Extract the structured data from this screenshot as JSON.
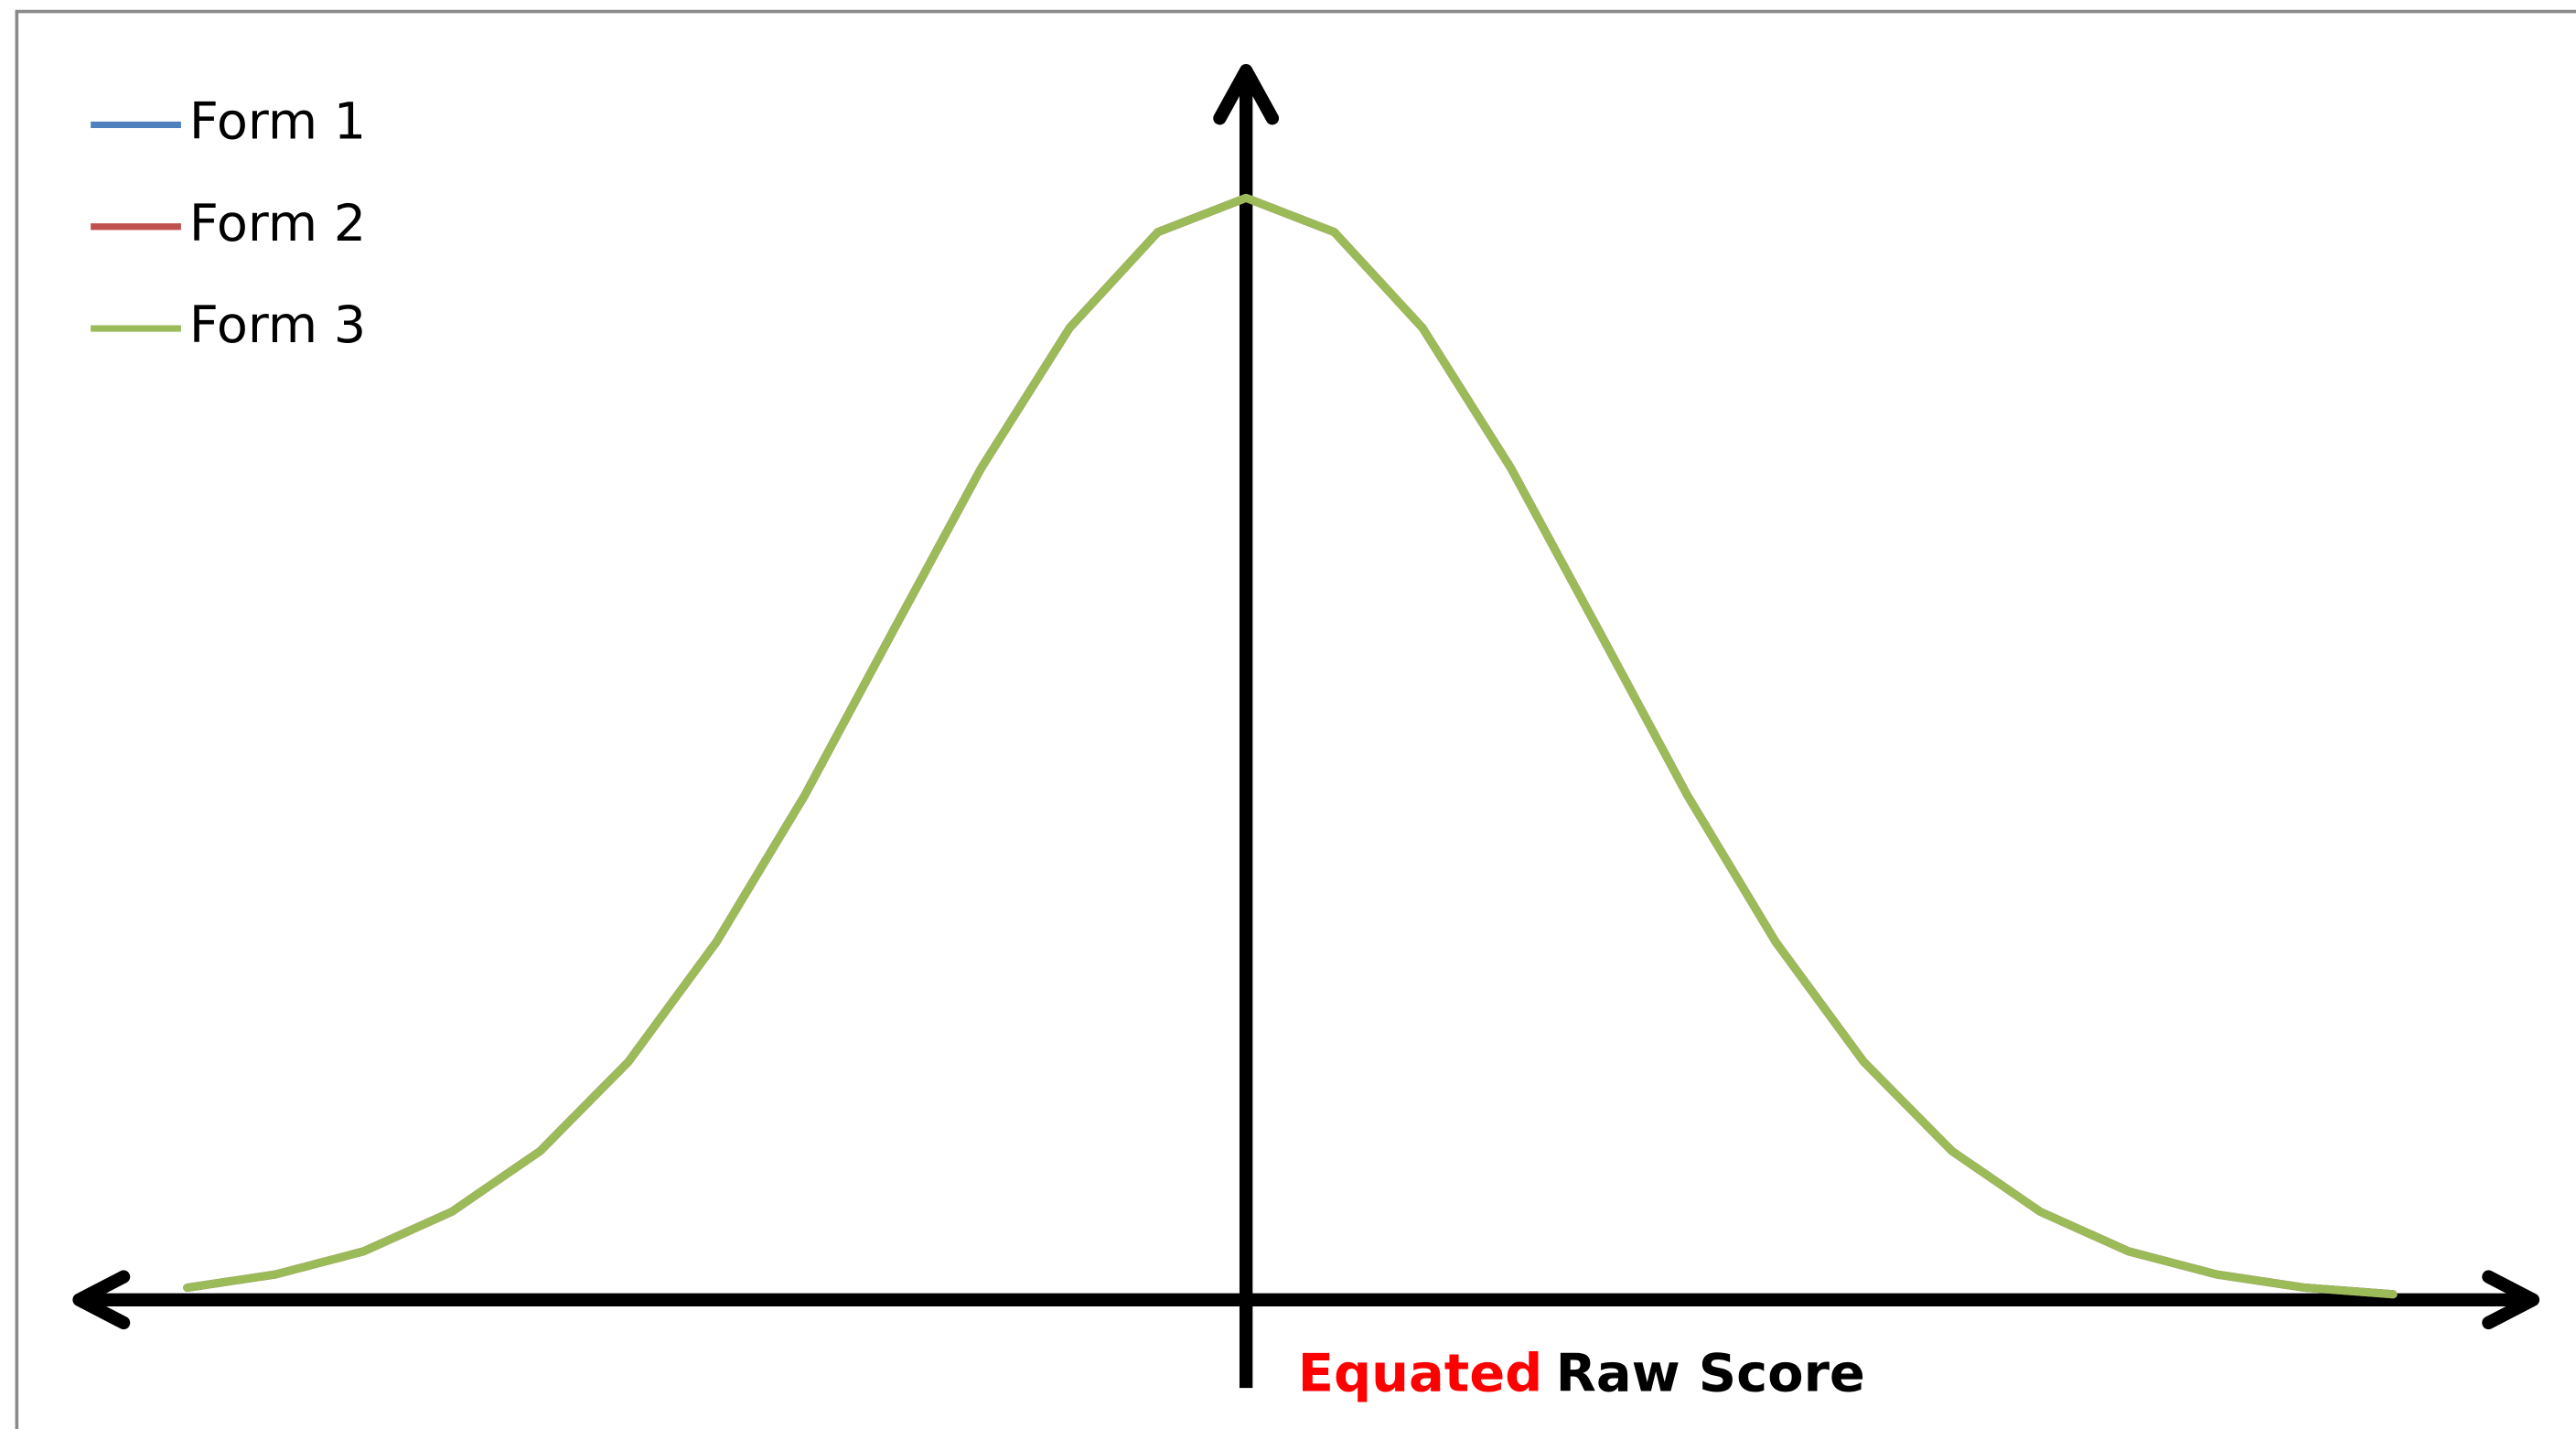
{
  "chart_data": {
    "type": "line",
    "x": [
      -3,
      -2.75,
      -2.5,
      -2.25,
      -2,
      -1.75,
      -1.5,
      -1.25,
      -1,
      -0.75,
      -0.5,
      -0.25,
      0,
      0.25,
      0.5,
      0.75,
      1,
      1.25,
      1.5,
      1.75,
      2,
      2.25,
      2.5,
      2.75,
      3,
      3.25
    ],
    "series": [
      {
        "name": "Form 1",
        "color": "#4f81bd",
        "values": [
          0.011,
          0.023,
          0.044,
          0.08,
          0.135,
          0.216,
          0.325,
          0.458,
          0.607,
          0.755,
          0.882,
          0.969,
          1,
          0.969,
          0.882,
          0.755,
          0.607,
          0.458,
          0.325,
          0.216,
          0.135,
          0.08,
          0.044,
          0.023,
          0.011,
          0.005
        ]
      },
      {
        "name": "Form 2",
        "color": "#c0504d",
        "values": [
          0.011,
          0.023,
          0.044,
          0.08,
          0.135,
          0.216,
          0.325,
          0.458,
          0.607,
          0.755,
          0.882,
          0.969,
          1,
          0.969,
          0.882,
          0.755,
          0.607,
          0.458,
          0.325,
          0.216,
          0.135,
          0.08,
          0.044,
          0.023,
          0.011,
          0.005
        ]
      },
      {
        "name": "Form 3",
        "color": "#9bbb59",
        "values": [
          0.011,
          0.023,
          0.044,
          0.08,
          0.135,
          0.216,
          0.325,
          0.458,
          0.607,
          0.755,
          0.882,
          0.969,
          1,
          0.969,
          0.882,
          0.755,
          0.607,
          0.458,
          0.325,
          0.216,
          0.135,
          0.08,
          0.044,
          0.023,
          0.011,
          0.005
        ]
      }
    ],
    "xlim": [
      -3.32,
      3.66
    ],
    "ylim": [
      -0.08,
      1.12
    ],
    "x_label": {
      "highlight": "Equated",
      "highlight_color": "#ff0000",
      "rest": "Raw Score"
    },
    "legend": "upper left"
  }
}
